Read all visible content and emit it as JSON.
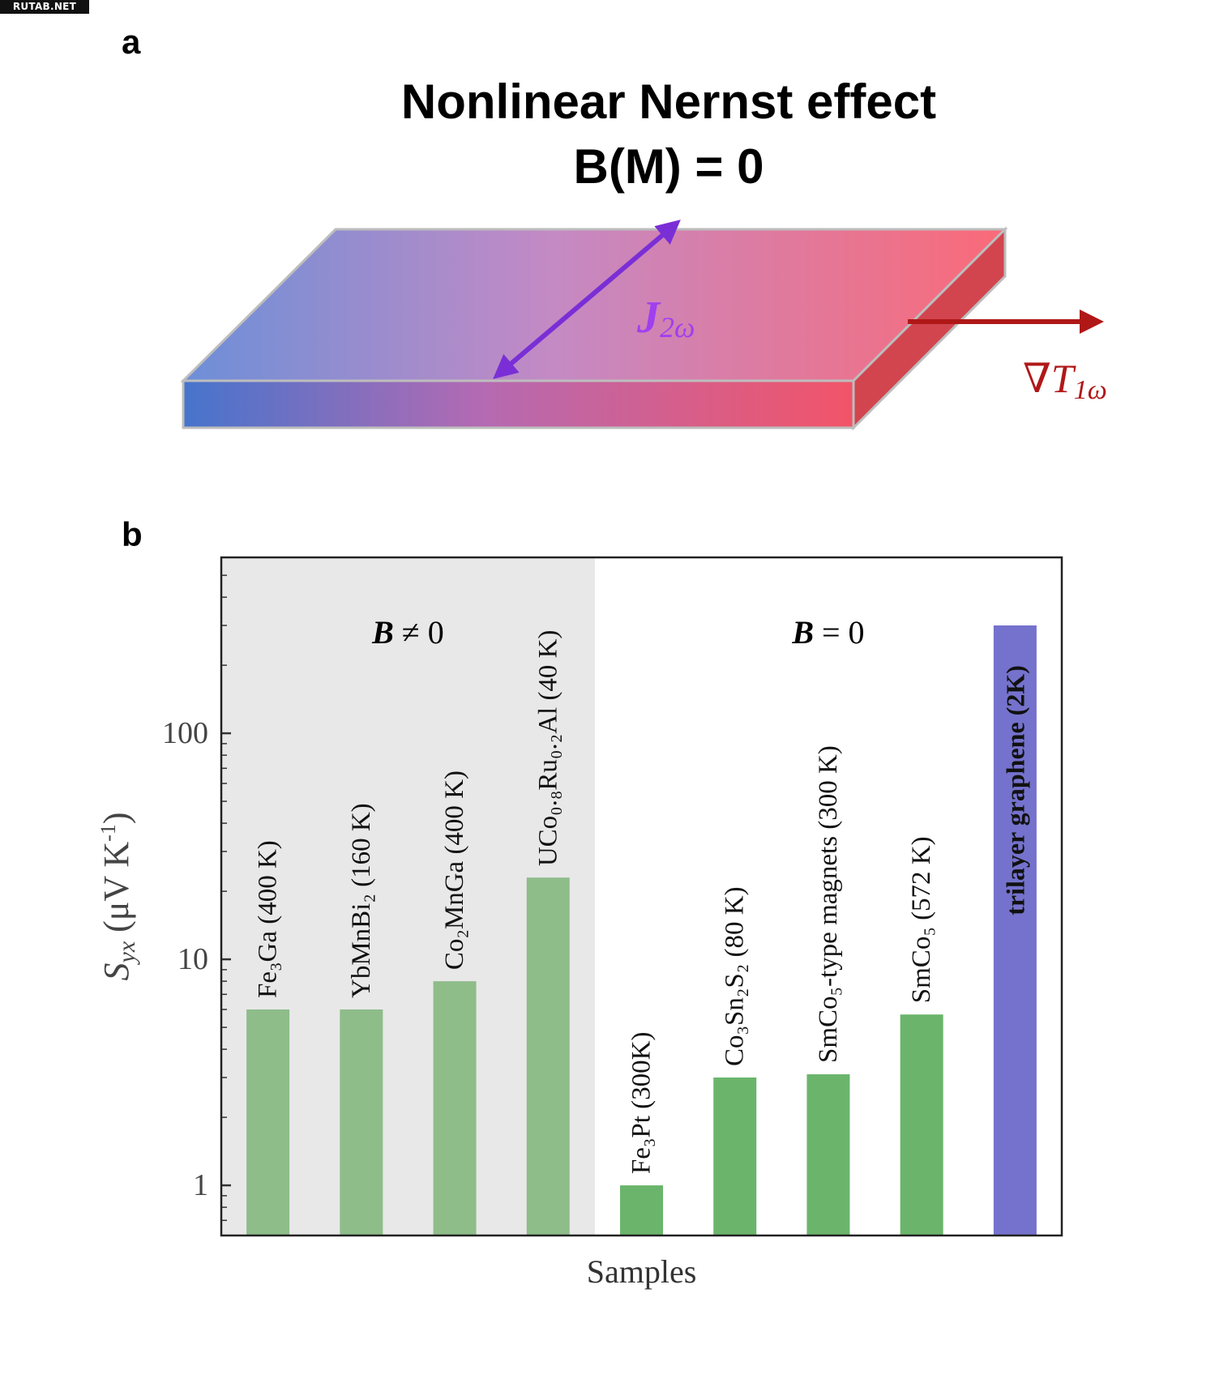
{
  "watermark": "RUTAB.NET",
  "panel_a": {
    "label": "a",
    "title_line1": "Nonlinear Nernst effect",
    "title_line2": "B(M) = 0",
    "current_label_main": "J",
    "current_label_sub": "2ω",
    "gradient_label_main": "∇T",
    "gradient_label_sub": "1ω",
    "colors": {
      "cold": "#4a78d0",
      "hot": "#f25a68",
      "current_arrow": "#7a2fd6",
      "gradient_arrow": "#b01818"
    }
  },
  "panel_b": {
    "label": "b"
  },
  "chart_data": {
    "type": "bar",
    "yscale": "log",
    "ylim": [
      0.6,
      600
    ],
    "xlabel": "Samples",
    "ylabel_main": "S",
    "ylabel_sub": "yx",
    "ylabel_unit": " (μV K",
    "ylabel_exp": "-1",
    "ylabel_close": ")",
    "yticks": [
      1,
      10,
      100
    ],
    "ytick_labels": [
      "1",
      "10",
      "100"
    ],
    "regions": [
      {
        "label_main": "B",
        "label_rest": " ≠ 0",
        "shaded": true
      },
      {
        "label_main": "B",
        "label_rest": " = 0",
        "shaded": false
      }
    ],
    "bars": [
      {
        "label": "Fe₃Ga (400 K)",
        "value": 6,
        "region": 0,
        "color": "#8ebd8a"
      },
      {
        "label": "YbMnBi₂ (160 K)",
        "value": 6,
        "region": 0,
        "color": "#8ebd8a"
      },
      {
        "label": "Co₂MnGa (400 K)",
        "value": 8,
        "region": 0,
        "color": "#8ebd8a"
      },
      {
        "label": "UCo₀.₈Ru₀.₂Al (40 K)",
        "value": 23,
        "region": 0,
        "color": "#8ebd8a"
      },
      {
        "label": "Fe₃Pt (300K)",
        "value": 1,
        "region": 1,
        "color": "#6ab56b"
      },
      {
        "label": "Co₃Sn₂S₂ (80 K)",
        "value": 3,
        "region": 1,
        "color": "#6ab56b"
      },
      {
        "label": "SmCo₅-type magnets (300 K)",
        "value": 3.1,
        "region": 1,
        "color": "#6ab56b"
      },
      {
        "label": "SmCo₅ (572 K)",
        "value": 5.7,
        "region": 1,
        "color": "#6ab56b"
      },
      {
        "label": "trilayer graphene (2K)",
        "value": 300,
        "region": 1,
        "color": "#7472cc",
        "bold": true
      }
    ]
  }
}
